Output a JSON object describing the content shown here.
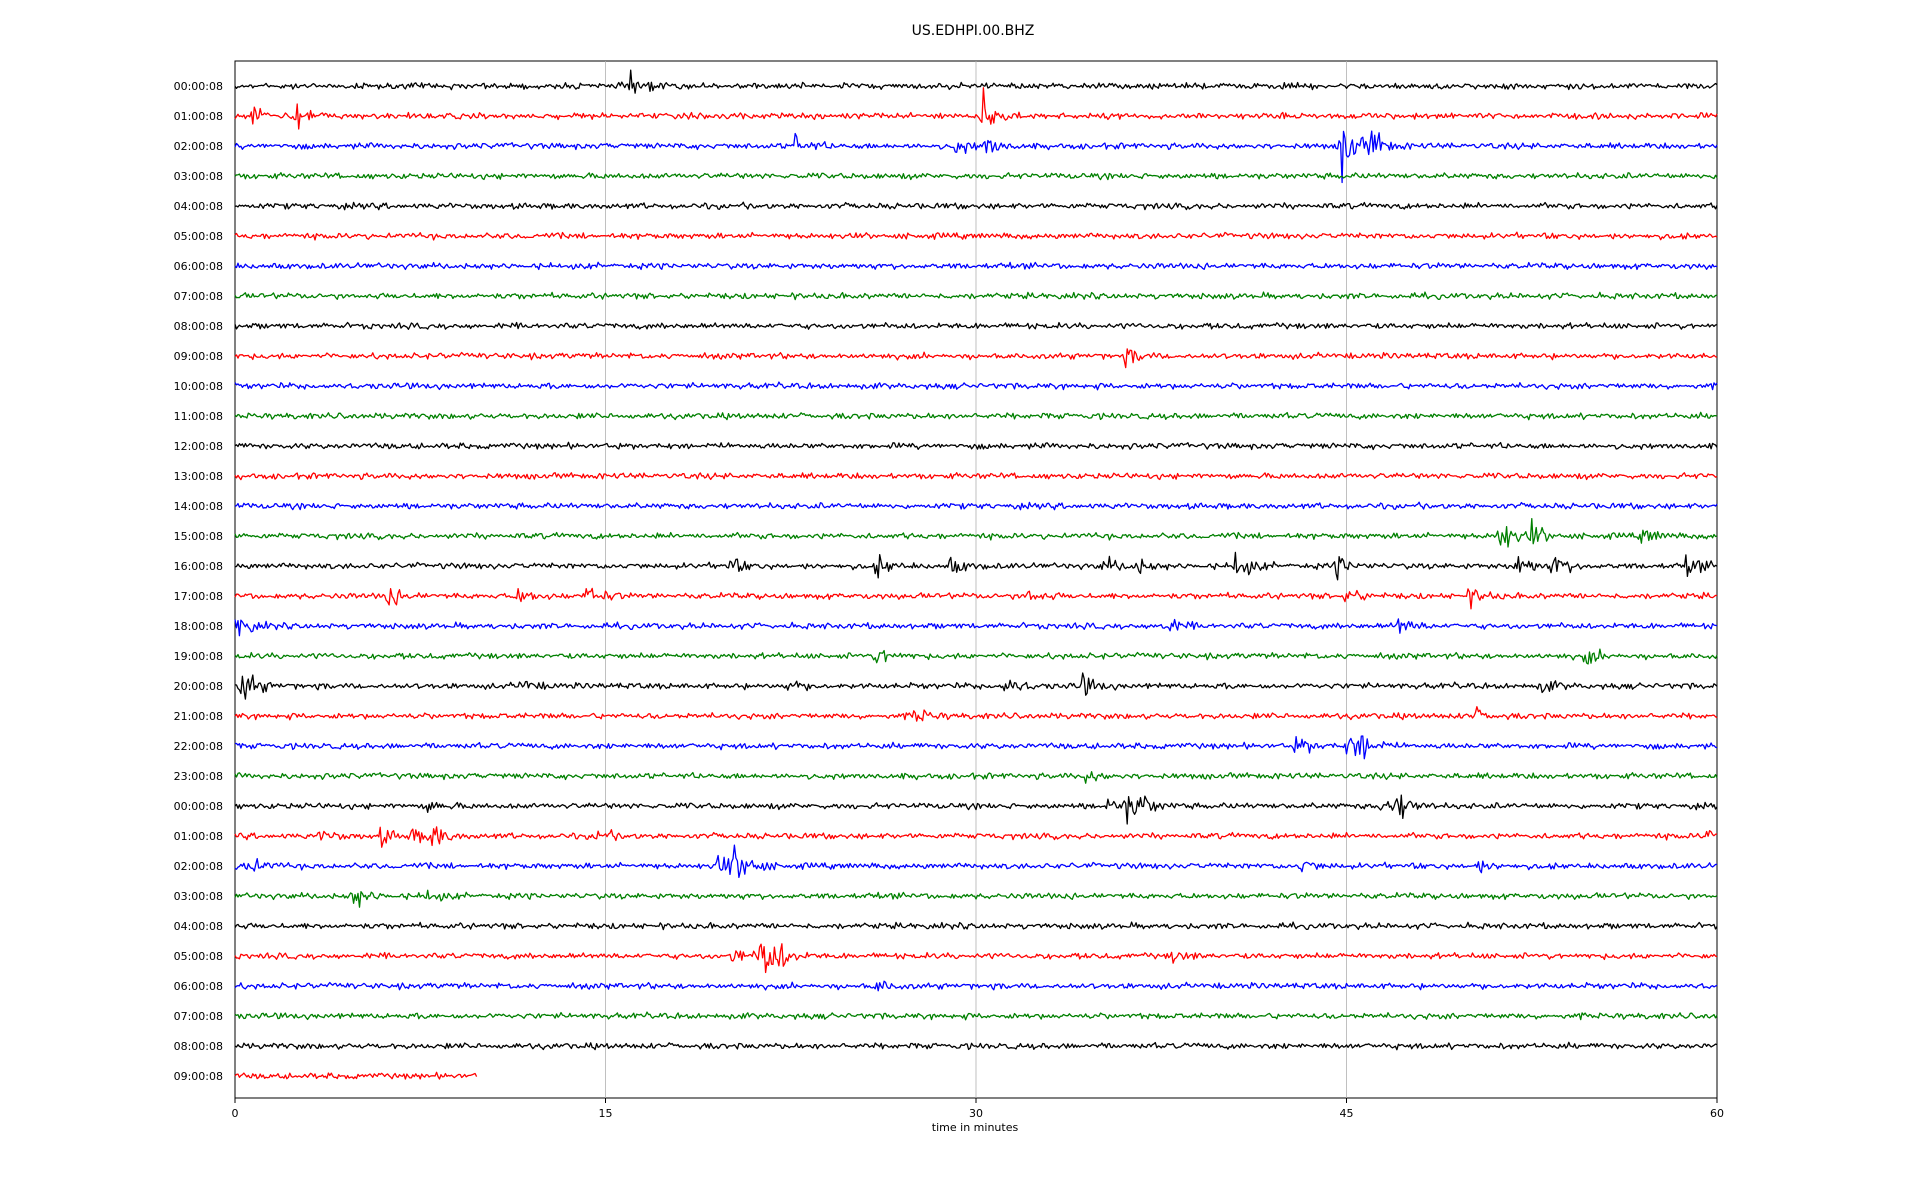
{
  "chart_data": {
    "type": "line",
    "title": "US.EDHPI.00.BHZ",
    "xlabel": "time in minutes",
    "ylabel": "",
    "xlim": [
      0,
      60
    ],
    "xticks": [
      "0",
      "15",
      "30",
      "45",
      "60"
    ],
    "grid": "vertical lines at x ticks",
    "colors": [
      "#000000",
      "#ff0000",
      "#0000ff",
      "#008000"
    ],
    "series": [
      {
        "label": "00:00:08",
        "color": "#000000",
        "x_end": 60,
        "events": [
          {
            "t": 16.0,
            "amp": 0.6
          }
        ]
      },
      {
        "label": "01:00:08",
        "color": "#ff0000",
        "x_end": 60,
        "events": [
          {
            "t": 0.7,
            "amp": 0.5
          },
          {
            "t": 2.5,
            "amp": 0.7
          },
          {
            "t": 30.3,
            "amp": 1.0
          }
        ]
      },
      {
        "label": "02:00:08",
        "color": "#0000ff",
        "x_end": 60,
        "events": [
          {
            "t": 22.7,
            "amp": 0.5
          },
          {
            "t": 29.2,
            "amp": 0.4
          },
          {
            "t": 30.4,
            "amp": 0.5
          },
          {
            "t": 44.8,
            "amp": 1.6
          },
          {
            "t": 46.0,
            "amp": 0.8
          }
        ]
      },
      {
        "label": "03:00:08",
        "color": "#008000",
        "x_end": 60,
        "events": []
      },
      {
        "label": "04:00:08",
        "color": "#000000",
        "x_end": 60,
        "events": []
      },
      {
        "label": "05:00:08",
        "color": "#ff0000",
        "x_end": 60,
        "events": []
      },
      {
        "label": "06:00:08",
        "color": "#0000ff",
        "x_end": 60,
        "events": []
      },
      {
        "label": "07:00:08",
        "color": "#008000",
        "x_end": 60,
        "events": []
      },
      {
        "label": "08:00:08",
        "color": "#000000",
        "x_end": 60,
        "events": []
      },
      {
        "label": "09:00:08",
        "color": "#ff0000",
        "x_end": 60,
        "events": [
          {
            "t": 36.1,
            "amp": 0.4
          }
        ]
      },
      {
        "label": "10:00:08",
        "color": "#0000ff",
        "x_end": 60,
        "events": []
      },
      {
        "label": "11:00:08",
        "color": "#008000",
        "x_end": 60,
        "events": []
      },
      {
        "label": "12:00:08",
        "color": "#000000",
        "x_end": 60,
        "events": []
      },
      {
        "label": "13:00:08",
        "color": "#ff0000",
        "x_end": 60,
        "events": []
      },
      {
        "label": "14:00:08",
        "color": "#0000ff",
        "x_end": 60,
        "events": []
      },
      {
        "label": "15:00:08",
        "color": "#008000",
        "x_end": 60,
        "events": [
          {
            "t": 51.2,
            "amp": 1.0
          },
          {
            "t": 52.5,
            "amp": 0.6
          },
          {
            "t": 57.0,
            "amp": 0.4
          }
        ]
      },
      {
        "label": "16:00:08",
        "color": "#000000",
        "x_end": 60,
        "events": [
          {
            "t": 20.0,
            "amp": 0.4
          },
          {
            "t": 26.0,
            "amp": 0.5
          },
          {
            "t": 29.0,
            "amp": 0.4
          },
          {
            "t": 35.2,
            "amp": 0.4
          },
          {
            "t": 36.5,
            "amp": 0.4
          },
          {
            "t": 40.5,
            "amp": 0.8
          },
          {
            "t": 44.6,
            "amp": 0.5
          },
          {
            "t": 51.9,
            "amp": 0.7
          },
          {
            "t": 53.4,
            "amp": 0.6
          },
          {
            "t": 58.8,
            "amp": 0.5
          }
        ]
      },
      {
        "label": "17:00:08",
        "color": "#ff0000",
        "x_end": 60,
        "events": [
          {
            "t": 6.2,
            "amp": 0.5
          },
          {
            "t": 11.5,
            "amp": 0.4
          },
          {
            "t": 14.3,
            "amp": 0.6
          },
          {
            "t": 32.1,
            "amp": 0.4
          },
          {
            "t": 45.0,
            "amp": 0.4
          },
          {
            "t": 50.0,
            "amp": 0.4
          }
        ]
      },
      {
        "label": "18:00:08",
        "color": "#0000ff",
        "x_end": 60,
        "events": [
          {
            "t": 0.1,
            "amp": 0.6
          },
          {
            "t": 37.6,
            "amp": 0.5
          },
          {
            "t": 47.1,
            "amp": 0.5
          }
        ]
      },
      {
        "label": "19:00:08",
        "color": "#008000",
        "x_end": 60,
        "events": [
          {
            "t": 26.0,
            "amp": 0.5
          },
          {
            "t": 54.7,
            "amp": 0.4
          }
        ]
      },
      {
        "label": "20:00:08",
        "color": "#000000",
        "x_end": 60,
        "events": [
          {
            "t": 0.3,
            "amp": 1.0
          },
          {
            "t": 11.6,
            "amp": 0.3
          },
          {
            "t": 22.4,
            "amp": 0.3
          },
          {
            "t": 31.2,
            "amp": 0.5
          },
          {
            "t": 34.2,
            "amp": 0.6
          },
          {
            "t": 52.9,
            "amp": 0.3
          }
        ]
      },
      {
        "label": "21:00:08",
        "color": "#ff0000",
        "x_end": 60,
        "events": [
          {
            "t": 27.5,
            "amp": 0.4
          },
          {
            "t": 50.1,
            "amp": 0.4
          }
        ]
      },
      {
        "label": "22:00:08",
        "color": "#0000ff",
        "x_end": 60,
        "events": [
          {
            "t": 43.0,
            "amp": 0.5
          },
          {
            "t": 45.1,
            "amp": 0.8
          },
          {
            "t": 45.6,
            "amp": 0.5
          }
        ]
      },
      {
        "label": "23:00:08",
        "color": "#008000",
        "x_end": 60,
        "events": [
          {
            "t": 34.5,
            "amp": 0.3
          }
        ]
      },
      {
        "label": "00:00:08",
        "color": "#000000",
        "x_end": 60,
        "events": [
          {
            "t": 7.8,
            "amp": 0.3
          },
          {
            "t": 35.3,
            "amp": 0.4
          },
          {
            "t": 36.1,
            "amp": 0.7
          },
          {
            "t": 36.6,
            "amp": 0.5
          },
          {
            "t": 46.5,
            "amp": 0.7
          },
          {
            "t": 47.1,
            "amp": 0.6
          }
        ]
      },
      {
        "label": "01:00:08",
        "color": "#ff0000",
        "x_end": 60,
        "events": [
          {
            "t": 3.5,
            "amp": 0.3
          },
          {
            "t": 5.9,
            "amp": 0.4
          },
          {
            "t": 7.2,
            "amp": 0.3
          },
          {
            "t": 7.9,
            "amp": 0.7
          },
          {
            "t": 14.7,
            "amp": 0.3
          },
          {
            "t": 59.6,
            "amp": 0.4
          }
        ]
      },
      {
        "label": "02:00:08",
        "color": "#0000ff",
        "x_end": 60,
        "events": [
          {
            "t": 0.4,
            "amp": 0.7
          },
          {
            "t": 19.5,
            "amp": 0.5
          },
          {
            "t": 20.1,
            "amp": 0.9
          },
          {
            "t": 20.6,
            "amp": 0.5
          },
          {
            "t": 43.2,
            "amp": 0.3
          },
          {
            "t": 50.3,
            "amp": 0.3
          }
        ]
      },
      {
        "label": "03:00:08",
        "color": "#008000",
        "x_end": 60,
        "events": [
          {
            "t": 4.8,
            "amp": 0.6
          },
          {
            "t": 7.6,
            "amp": 0.4
          }
        ]
      },
      {
        "label": "04:00:08",
        "color": "#000000",
        "x_end": 60,
        "events": []
      },
      {
        "label": "05:00:08",
        "color": "#ff0000",
        "x_end": 60,
        "events": [
          {
            "t": 20.2,
            "amp": 0.4
          },
          {
            "t": 21.3,
            "amp": 1.5
          },
          {
            "t": 22.0,
            "amp": 0.5
          },
          {
            "t": 38.0,
            "amp": 0.3
          }
        ]
      },
      {
        "label": "06:00:08",
        "color": "#0000ff",
        "x_end": 60,
        "events": [
          {
            "t": 26.0,
            "amp": 0.3
          }
        ]
      },
      {
        "label": "07:00:08",
        "color": "#008000",
        "x_end": 60,
        "events": []
      },
      {
        "label": "08:00:08",
        "color": "#000000",
        "x_end": 60,
        "events": []
      },
      {
        "label": "09:00:08",
        "color": "#ff0000",
        "x_end": 9.8,
        "events": []
      }
    ]
  }
}
